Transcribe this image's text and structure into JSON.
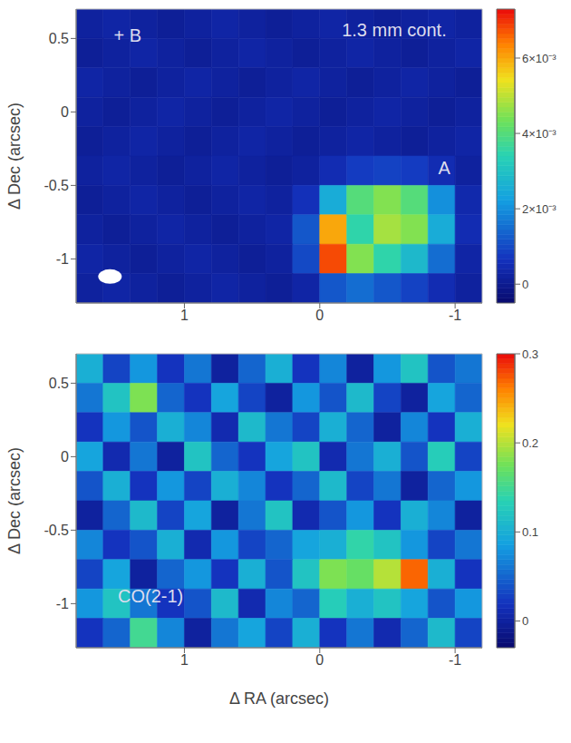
{
  "chart_data": [
    {
      "type": "heatmap",
      "title": "1.3 mm cont.",
      "y_label": "Δ Dec (arcsec)",
      "annotations": [
        "+ B",
        "A"
      ],
      "xlim": [
        1.8,
        -1.2
      ],
      "ylim": [
        -1.3,
        0.7
      ],
      "xticks": [
        1,
        0,
        -1
      ],
      "yticks": [
        -1,
        -0.5,
        0,
        0.5
      ],
      "x": [
        1.7,
        1.5,
        1.3,
        1.1,
        0.9,
        0.7,
        0.5,
        0.3,
        0.1,
        -0.1,
        -0.3,
        -0.5,
        -0.7,
        -0.9,
        -1.1
      ],
      "y": [
        0.6,
        0.4,
        0.2,
        0.0,
        -0.2,
        -0.4,
        -0.6,
        -0.8,
        -1.0,
        -1.2
      ],
      "cells": [
        [
          0.0002,
          0.0003,
          0.0002,
          0.0001,
          0.0002,
          0.0003,
          0.0002,
          0.0001,
          0.0002,
          0.0003,
          0.0002,
          0.0001,
          0.0002,
          0.0003,
          0.0002
        ],
        [
          0.0001,
          0.0002,
          0.0003,
          0.0002,
          0.0001,
          0.0002,
          0.0003,
          0.0002,
          0.0001,
          0.0002,
          0.0003,
          0.0002,
          0.0001,
          0.0002,
          0.0003
        ],
        [
          0.0003,
          0.0002,
          0.0001,
          0.0002,
          0.0003,
          0.0002,
          0.0001,
          0.0002,
          0.0003,
          0.0002,
          0.0001,
          0.0002,
          0.0003,
          0.0002,
          0.0001
        ],
        [
          0.0002,
          0.0001,
          0.0002,
          0.0003,
          0.0002,
          0.0001,
          0.0002,
          0.0003,
          0.0002,
          0.0001,
          0.0002,
          0.0003,
          0.0002,
          0.0001,
          0.0002
        ],
        [
          0.0001,
          0.0002,
          0.0003,
          0.0002,
          0.0001,
          0.0002,
          0.0003,
          0.0002,
          0.0001,
          0.0002,
          0.0003,
          0.0002,
          0.0001,
          0.0002,
          0.0003
        ],
        [
          0.0002,
          0.0003,
          0.0002,
          0.0001,
          0.0002,
          0.0003,
          0.0002,
          0.0001,
          0.0002,
          0.0005,
          0.0008,
          0.0009,
          0.0008,
          0.0005,
          0.0002
        ],
        [
          0.0001,
          0.0002,
          0.0003,
          0.0002,
          0.0001,
          0.0002,
          0.0003,
          0.0002,
          0.0006,
          0.0025,
          0.004,
          0.0045,
          0.004,
          0.002,
          0.0004
        ],
        [
          0.0002,
          0.0001,
          0.0002,
          0.0003,
          0.0002,
          0.0001,
          0.0002,
          0.0003,
          0.0012,
          0.006,
          0.0035,
          0.0048,
          0.0045,
          0.0025,
          0.0005
        ],
        [
          0.0003,
          0.0002,
          0.0001,
          0.0002,
          0.0003,
          0.0002,
          0.0001,
          0.0002,
          0.001,
          0.0068,
          0.0045,
          0.0035,
          0.0028,
          0.0015,
          0.0003
        ],
        [
          0.0002,
          0.0003,
          0.0002,
          0.0001,
          0.0002,
          0.0003,
          0.0002,
          0.0001,
          0.0003,
          0.0012,
          0.0015,
          0.0012,
          0.0009,
          0.0005,
          0.0002
        ]
      ],
      "colorbar": {
        "range": [
          -0.0005,
          0.0073
        ],
        "ticks": [
          0,
          {
            "value": 0.002,
            "label": "2×10⁻³"
          },
          {
            "value": 0.004,
            "label": "4×10⁻³"
          },
          {
            "value": 0.006,
            "label": "6×10⁻³"
          }
        ]
      }
    },
    {
      "type": "heatmap",
      "title": "CO(2-1)",
      "x_label": "Δ RA (arcsec)",
      "y_label": "Δ Dec (arcsec)",
      "xlim": [
        1.8,
        -1.2
      ],
      "ylim": [
        -1.3,
        0.7
      ],
      "xticks": [
        1,
        0,
        -1
      ],
      "yticks": [
        -1,
        -0.5,
        0,
        0.5
      ],
      "x": [
        1.7,
        1.5,
        1.3,
        1.1,
        0.9,
        0.7,
        0.5,
        0.3,
        0.1,
        -0.1,
        -0.3,
        -0.5,
        -0.7,
        -0.9,
        -1.1
      ],
      "y": [
        0.6,
        0.4,
        0.2,
        0.0,
        -0.2,
        -0.4,
        -0.6,
        -0.8,
        -1.0,
        -1.2
      ],
      "cells": [
        [
          0.1,
          0.03,
          0.08,
          0.02,
          0.06,
          0.0,
          0.05,
          0.1,
          0.02,
          0.07,
          0.0,
          0.08,
          0.12,
          0.04,
          0.06
        ],
        [
          0.06,
          0.12,
          0.18,
          0.05,
          0.02,
          0.09,
          0.03,
          0.0,
          0.08,
          0.04,
          0.11,
          0.03,
          0.0,
          0.09,
          0.05
        ],
        [
          0.02,
          0.08,
          0.04,
          0.1,
          0.07,
          0.01,
          0.11,
          0.06,
          0.03,
          0.1,
          0.05,
          0.0,
          0.07,
          0.02,
          0.1
        ],
        [
          0.09,
          0.01,
          0.06,
          0.0,
          0.12,
          0.05,
          0.02,
          0.09,
          0.12,
          0.01,
          0.06,
          0.1,
          0.04,
          0.13,
          0.03
        ],
        [
          0.04,
          0.1,
          0.02,
          0.08,
          0.03,
          0.1,
          0.07,
          0.02,
          0.05,
          0.11,
          0.03,
          0.06,
          0.0,
          0.05,
          0.08
        ],
        [
          0.0,
          0.05,
          0.11,
          0.03,
          0.09,
          0.0,
          0.06,
          0.12,
          0.01,
          0.04,
          0.08,
          0.02,
          0.1,
          0.07,
          0.0
        ],
        [
          0.07,
          0.02,
          0.04,
          0.1,
          0.01,
          0.08,
          0.03,
          0.05,
          0.09,
          0.1,
          0.14,
          0.12,
          0.08,
          0.03,
          0.06
        ],
        [
          0.03,
          0.09,
          0.0,
          0.05,
          0.08,
          0.02,
          0.1,
          0.04,
          0.12,
          0.18,
          0.17,
          0.2,
          0.27,
          0.1,
          0.02
        ],
        [
          0.08,
          0.12,
          0.06,
          0.02,
          0.04,
          0.11,
          0.01,
          0.07,
          0.05,
          0.13,
          0.1,
          0.12,
          0.09,
          0.04,
          0.08
        ],
        [
          0.02,
          0.05,
          0.15,
          0.07,
          0.0,
          0.06,
          0.09,
          0.03,
          0.1,
          0.02,
          0.06,
          0.01,
          0.05,
          0.11,
          0.03
        ]
      ],
      "colorbar": {
        "range": [
          -0.03,
          0.3
        ],
        "ticks": [
          0,
          0.1,
          0.2,
          0.3
        ]
      }
    }
  ]
}
